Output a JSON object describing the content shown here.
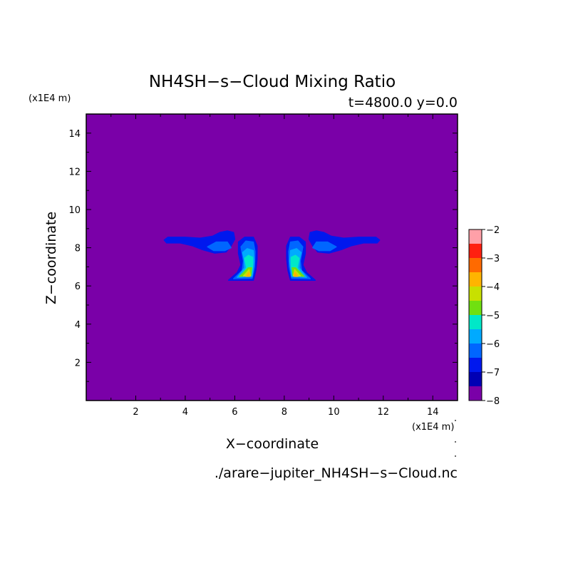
{
  "chart_data": {
    "type": "heatmap",
    "title": "NH4SH−s−Cloud Mixing Ratio",
    "subtitle": "t=4800.0 y=0.0",
    "xlabel": "X−coordinate",
    "ylabel": "Z−coordinate",
    "x_unit": "(x1E4 m)",
    "z_unit": "(x1E4 m)",
    "footer": "./arare−jupiter_NH4SH−s−Cloud.nc",
    "xlim": [
      0,
      15
    ],
    "ylim": [
      0,
      15
    ],
    "xticks": [
      2,
      4,
      6,
      8,
      10,
      12,
      14
    ],
    "yticks": [
      2,
      4,
      6,
      8,
      10,
      12,
      14
    ],
    "background_value": -8,
    "colorbar": {
      "min": -8,
      "max": -2,
      "tick_values": [
        -8,
        -7,
        -6,
        -5,
        -4,
        -3,
        -2
      ],
      "tick_labels": [
        "−8",
        "−7",
        "−6",
        "−5",
        "−4",
        "−3",
        "−2"
      ],
      "levels": [
        {
          "from": -8.0,
          "to": -7.5,
          "color": "#7a00a8"
        },
        {
          "from": -7.5,
          "to": -7.0,
          "color": "#0000b4"
        },
        {
          "from": -7.0,
          "to": -6.5,
          "color": "#0018ee"
        },
        {
          "from": -6.5,
          "to": -6.0,
          "color": "#0066ff"
        },
        {
          "from": -6.0,
          "to": -5.5,
          "color": "#00aaff"
        },
        {
          "from": -5.5,
          "to": -5.0,
          "color": "#00e8c8"
        },
        {
          "from": -5.0,
          "to": -4.5,
          "color": "#70e010"
        },
        {
          "from": -4.5,
          "to": -4.0,
          "color": "#c8e000"
        },
        {
          "from": -4.0,
          "to": -3.5,
          "color": "#ffb400"
        },
        {
          "from": -3.5,
          "to": -3.0,
          "color": "#ff6a00"
        },
        {
          "from": -3.0,
          "to": -2.5,
          "color": "#ff2010"
        },
        {
          "from": -2.5,
          "to": -2.0,
          "color": "#ffa0a8"
        }
      ]
    },
    "regions": [
      {
        "name": "left-anvil-outer",
        "level": -7.0,
        "points": [
          [
            3.15,
            8.4
          ],
          [
            3.3,
            8.55
          ],
          [
            4.0,
            8.55
          ],
          [
            4.6,
            8.5
          ],
          [
            5.1,
            8.6
          ],
          [
            5.4,
            8.8
          ],
          [
            5.7,
            8.88
          ],
          [
            5.95,
            8.8
          ],
          [
            6.0,
            8.45
          ],
          [
            5.85,
            8.1
          ],
          [
            5.65,
            7.78
          ],
          [
            5.2,
            7.72
          ],
          [
            4.7,
            7.9
          ],
          [
            4.3,
            8.1
          ],
          [
            3.8,
            8.25
          ],
          [
            3.25,
            8.25
          ]
        ]
      },
      {
        "name": "left-anvil-inner",
        "level": -6.5,
        "points": [
          [
            4.9,
            8.05
          ],
          [
            5.25,
            8.3
          ],
          [
            5.7,
            8.3
          ],
          [
            5.85,
            8.0
          ],
          [
            5.6,
            7.85
          ],
          [
            5.15,
            7.85
          ]
        ]
      },
      {
        "name": "left-plume-1",
        "level": -7.0,
        "points": [
          [
            6.15,
            8.3
          ],
          [
            6.4,
            8.55
          ],
          [
            6.75,
            8.55
          ],
          [
            6.9,
            8.1
          ],
          [
            6.9,
            7.4
          ],
          [
            6.85,
            6.8
          ],
          [
            6.75,
            6.3
          ],
          [
            5.75,
            6.3
          ],
          [
            6.1,
            6.7
          ],
          [
            6.25,
            7.1
          ],
          [
            6.15,
            7.7
          ]
        ]
      },
      {
        "name": "left-plume-2",
        "level": -6.5,
        "points": [
          [
            6.25,
            8.05
          ],
          [
            6.45,
            8.35
          ],
          [
            6.75,
            8.3
          ],
          [
            6.82,
            7.8
          ],
          [
            6.8,
            7.0
          ],
          [
            6.7,
            6.4
          ],
          [
            5.95,
            6.38
          ],
          [
            6.3,
            6.8
          ],
          [
            6.35,
            7.3
          ]
        ]
      },
      {
        "name": "left-plume-3",
        "level": -6.0,
        "points": [
          [
            6.32,
            7.75
          ],
          [
            6.5,
            7.95
          ],
          [
            6.75,
            7.85
          ],
          [
            6.78,
            7.3
          ],
          [
            6.7,
            6.5
          ],
          [
            6.1,
            6.45
          ],
          [
            6.4,
            6.95
          ],
          [
            6.38,
            7.4
          ]
        ]
      },
      {
        "name": "left-plume-4",
        "level": -5.5,
        "points": [
          [
            6.4,
            7.45
          ],
          [
            6.55,
            7.6
          ],
          [
            6.72,
            7.5
          ],
          [
            6.72,
            7.0
          ],
          [
            6.65,
            6.55
          ],
          [
            6.25,
            6.52
          ],
          [
            6.48,
            6.95
          ]
        ]
      },
      {
        "name": "left-plume-5",
        "level": -5.0,
        "points": [
          [
            6.2,
            6.5
          ],
          [
            6.55,
            6.95
          ],
          [
            6.68,
            6.95
          ],
          [
            6.65,
            6.55
          ]
        ]
      },
      {
        "name": "left-plume-6",
        "level": -4.5,
        "points": [
          [
            6.35,
            6.52
          ],
          [
            6.58,
            6.85
          ],
          [
            6.63,
            6.52
          ]
        ]
      },
      {
        "name": "left-plume-7",
        "level": -4.0,
        "points": [
          [
            6.45,
            6.5
          ],
          [
            6.58,
            6.72
          ],
          [
            6.6,
            6.5
          ]
        ]
      },
      {
        "name": "right-anvil-outer",
        "level": -7.0,
        "points": [
          [
            11.85,
            8.4
          ],
          [
            11.7,
            8.55
          ],
          [
            11.0,
            8.55
          ],
          [
            10.4,
            8.5
          ],
          [
            9.9,
            8.6
          ],
          [
            9.6,
            8.8
          ],
          [
            9.3,
            8.88
          ],
          [
            9.05,
            8.8
          ],
          [
            9.0,
            8.45
          ],
          [
            9.15,
            8.1
          ],
          [
            9.35,
            7.78
          ],
          [
            9.8,
            7.72
          ],
          [
            10.3,
            7.9
          ],
          [
            10.7,
            8.1
          ],
          [
            11.2,
            8.25
          ],
          [
            11.75,
            8.25
          ]
        ]
      },
      {
        "name": "right-anvil-inner",
        "level": -6.5,
        "points": [
          [
            10.1,
            8.05
          ],
          [
            9.75,
            8.3
          ],
          [
            9.3,
            8.3
          ],
          [
            9.15,
            8.0
          ],
          [
            9.4,
            7.85
          ],
          [
            9.85,
            7.85
          ]
        ]
      },
      {
        "name": "right-plume-1",
        "level": -7.0,
        "points": [
          [
            8.85,
            8.3
          ],
          [
            8.6,
            8.55
          ],
          [
            8.25,
            8.55
          ],
          [
            8.1,
            8.1
          ],
          [
            8.1,
            7.4
          ],
          [
            8.15,
            6.8
          ],
          [
            8.25,
            6.3
          ],
          [
            9.25,
            6.3
          ],
          [
            8.9,
            6.7
          ],
          [
            8.75,
            7.1
          ],
          [
            8.85,
            7.7
          ]
        ]
      },
      {
        "name": "right-plume-2",
        "level": -6.5,
        "points": [
          [
            8.75,
            8.05
          ],
          [
            8.55,
            8.35
          ],
          [
            8.25,
            8.3
          ],
          [
            8.18,
            7.8
          ],
          [
            8.2,
            7.0
          ],
          [
            8.3,
            6.4
          ],
          [
            9.05,
            6.38
          ],
          [
            8.7,
            6.8
          ],
          [
            8.65,
            7.3
          ]
        ]
      },
      {
        "name": "right-plume-3",
        "level": -6.0,
        "points": [
          [
            8.68,
            7.75
          ],
          [
            8.5,
            7.95
          ],
          [
            8.25,
            7.85
          ],
          [
            8.22,
            7.3
          ],
          [
            8.3,
            6.5
          ],
          [
            8.9,
            6.45
          ],
          [
            8.6,
            6.95
          ],
          [
            8.62,
            7.4
          ]
        ]
      },
      {
        "name": "right-plume-4",
        "level": -5.5,
        "points": [
          [
            8.6,
            7.45
          ],
          [
            8.45,
            7.6
          ],
          [
            8.28,
            7.5
          ],
          [
            8.28,
            7.0
          ],
          [
            8.35,
            6.55
          ],
          [
            8.75,
            6.52
          ],
          [
            8.52,
            6.95
          ]
        ]
      },
      {
        "name": "right-plume-5",
        "level": -5.0,
        "points": [
          [
            8.8,
            6.5
          ],
          [
            8.45,
            6.95
          ],
          [
            8.32,
            6.95
          ],
          [
            8.35,
            6.55
          ]
        ]
      },
      {
        "name": "right-plume-6",
        "level": -4.5,
        "points": [
          [
            8.65,
            6.52
          ],
          [
            8.42,
            6.85
          ],
          [
            8.37,
            6.52
          ]
        ]
      },
      {
        "name": "right-plume-7",
        "level": -4.0,
        "points": [
          [
            8.55,
            6.5
          ],
          [
            8.42,
            6.72
          ],
          [
            8.4,
            6.5
          ]
        ]
      }
    ]
  }
}
